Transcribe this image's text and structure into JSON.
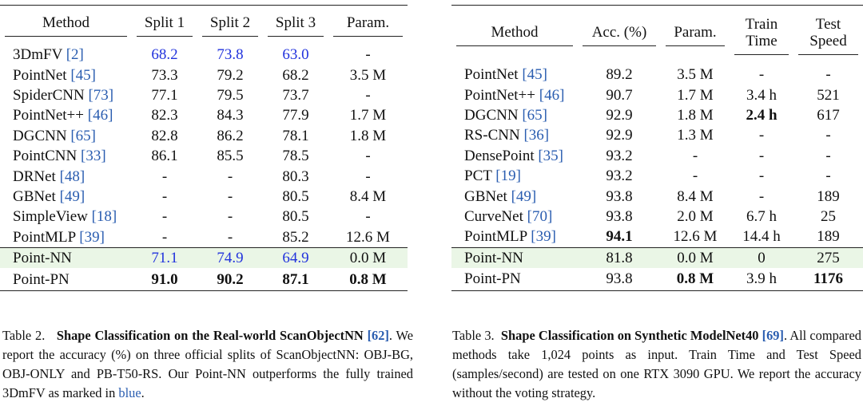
{
  "table2": {
    "headers": [
      "Method",
      "Split 1",
      "Split 2",
      "Split 3",
      "Param."
    ],
    "rows": [
      {
        "method": "3DmFV",
        "ref": "[2]",
        "cells": [
          "68.2",
          "73.8",
          "63.0",
          "-"
        ]
      },
      {
        "method": "PointNet",
        "ref": "[45]",
        "cells": [
          "73.3",
          "79.2",
          "68.2",
          "3.5 M"
        ]
      },
      {
        "method": "SpiderCNN",
        "ref": "[73]",
        "cells": [
          "77.1",
          "79.5",
          "73.7",
          "-"
        ]
      },
      {
        "method": "PointNet++",
        "ref": "[46]",
        "cells": [
          "82.3",
          "84.3",
          "77.9",
          "1.7 M"
        ]
      },
      {
        "method": "DGCNN",
        "ref": "[65]",
        "cells": [
          "82.8",
          "86.2",
          "78.1",
          "1.8 M"
        ]
      },
      {
        "method": "PointCNN",
        "ref": "[33]",
        "cells": [
          "86.1",
          "85.5",
          "78.5",
          "-"
        ]
      },
      {
        "method": "DRNet",
        "ref": "[48]",
        "cells": [
          "-",
          "-",
          "80.3",
          "-"
        ]
      },
      {
        "method": "GBNet",
        "ref": "[49]",
        "cells": [
          "-",
          "-",
          "80.5",
          "8.4 M"
        ]
      },
      {
        "method": "SimpleView",
        "ref": "[18]",
        "cells": [
          "-",
          "-",
          "80.5",
          "-"
        ]
      },
      {
        "method": "PointMLP",
        "ref": "[39]",
        "cells": [
          "-",
          "-",
          "85.2",
          "12.6 M"
        ]
      },
      {
        "method": "Point-NN",
        "cells": [
          "71.1",
          "74.9",
          "64.9",
          "0.0 M"
        ]
      },
      {
        "method": "Point-PN",
        "cells": [
          "91.0",
          "90.2",
          "87.1",
          "0.8 M"
        ]
      }
    ],
    "caption": {
      "label": "Table 2.",
      "title": "Shape Classification on the Real-world ScanObjectNN",
      "ref": "[62]",
      "text": ". We report the accuracy (%) on three official splits of ScanObjectNN: OBJ-BG, OBJ-ONLY and PB-T50-RS. Our Point-NN outperforms the fully trained 3DmFV as marked in",
      "blue_word": "blue",
      "end": "."
    }
  },
  "table3": {
    "headers": [
      "Method",
      "Acc. (%)",
      "Param.",
      "Train Time",
      "Test Speed"
    ],
    "rows": [
      {
        "method": "PointNet",
        "ref": "[45]",
        "cells": [
          "89.2",
          "3.5 M",
          "-",
          "-"
        ]
      },
      {
        "method": "PointNet++",
        "ref": "[46]",
        "cells": [
          "90.7",
          "1.7 M",
          "3.4 h",
          "521"
        ]
      },
      {
        "method": "DGCNN",
        "ref": "[65]",
        "cells": [
          "92.9",
          "1.8 M",
          "2.4 h",
          "617"
        ]
      },
      {
        "method": "RS-CNN",
        "ref": "[36]",
        "cells": [
          "92.9",
          "1.3 M",
          "-",
          "-"
        ]
      },
      {
        "method": "DensePoint",
        "ref": "[35]",
        "cells": [
          "93.2",
          "-",
          "-",
          "-"
        ]
      },
      {
        "method": "PCT",
        "ref": "[19]",
        "cells": [
          "93.2",
          "-",
          "-",
          "-"
        ]
      },
      {
        "method": "GBNet",
        "ref": "[49]",
        "cells": [
          "93.8",
          "8.4 M",
          "-",
          "189"
        ]
      },
      {
        "method": "CurveNet",
        "ref": "[70]",
        "cells": [
          "93.8",
          "2.0 M",
          "6.7 h",
          "25"
        ]
      },
      {
        "method": "PointMLP",
        "ref": "[39]",
        "cells": [
          "94.1",
          "12.6 M",
          "14.4 h",
          "189"
        ]
      },
      {
        "method": "Point-NN",
        "cells": [
          "81.8",
          "0.0 M",
          "0",
          "275"
        ]
      },
      {
        "method": "Point-PN",
        "cells": [
          "93.8",
          "0.8 M",
          "3.9 h",
          "1176"
        ]
      }
    ],
    "caption": {
      "label": "Table 3.",
      "title": "Shape Classification on Synthetic ModelNet40",
      "ref": "[69]",
      "text": ". All compared methods take 1,024 points as input. Train Time and Test Speed (samples/second) are tested on one RTX 3090 GPU. We report the accuracy without the voting strategy."
    }
  }
}
